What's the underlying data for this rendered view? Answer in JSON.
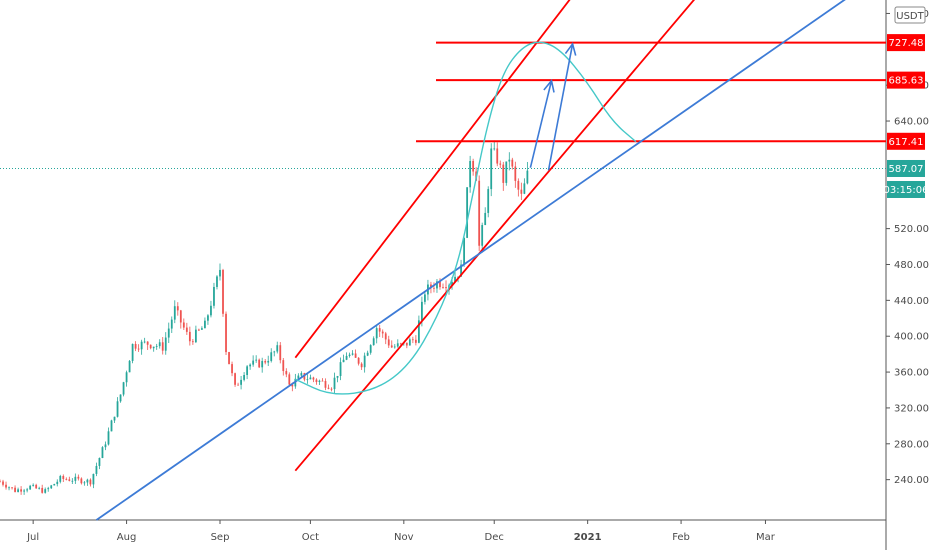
{
  "chart_data": {
    "type": "line",
    "title": "",
    "xlabel": "",
    "ylabel": "",
    "currency": "USDT",
    "x_ticks": [
      {
        "label": "Jul",
        "date": "2020-07-01"
      },
      {
        "label": "Aug",
        "date": "2020-08-01"
      },
      {
        "label": "Sep",
        "date": "2020-09-01"
      },
      {
        "label": "Oct",
        "date": "2020-10-01"
      },
      {
        "label": "Nov",
        "date": "2020-11-01"
      },
      {
        "label": "Dec",
        "date": "2020-12-01"
      },
      {
        "label": "2021",
        "date": "2021-01-01"
      },
      {
        "label": "Feb",
        "date": "2021-02-01"
      },
      {
        "label": "Mar",
        "date": "2021-03-01"
      }
    ],
    "y_ticks": [
      240,
      280,
      320,
      360,
      400,
      440,
      480,
      520,
      640,
      680,
      760
    ],
    "y_tick_labels": [
      "240.00",
      "280.00",
      "320.00",
      "360.00",
      "400.00",
      "440.00",
      "480.00",
      "520.00",
      "640.00",
      "680.00",
      "760.00"
    ],
    "ylim": [
      195,
      775
    ],
    "xlim": [
      "2020-06-20",
      "2021-04-10"
    ],
    "grid": false,
    "price_series": {
      "name": "",
      "color": "#26a69a",
      "down_color": "#ef5350",
      "points": [
        [
          "2020-06-20",
          238
        ],
        [
          "2020-06-25",
          228
        ],
        [
          "2020-06-30",
          232
        ],
        [
          "2020-07-05",
          227
        ],
        [
          "2020-07-10",
          241
        ],
        [
          "2020-07-15",
          240
        ],
        [
          "2020-07-20",
          238
        ],
        [
          "2020-07-25",
          282
        ],
        [
          "2020-07-30",
          335
        ],
        [
          "2020-08-03",
          390
        ],
        [
          "2020-08-08",
          392
        ],
        [
          "2020-08-13",
          388
        ],
        [
          "2020-08-17",
          430
        ],
        [
          "2020-08-22",
          395
        ],
        [
          "2020-08-27",
          412
        ],
        [
          "2020-09-01",
          475
        ],
        [
          "2020-09-03",
          385
        ],
        [
          "2020-09-06",
          342
        ],
        [
          "2020-09-10",
          368
        ],
        [
          "2020-09-15",
          370
        ],
        [
          "2020-09-20",
          385
        ],
        [
          "2020-09-24",
          345
        ],
        [
          "2020-09-28",
          355
        ],
        [
          "2020-10-02",
          352
        ],
        [
          "2020-10-08",
          345
        ],
        [
          "2020-10-13",
          380
        ],
        [
          "2020-10-18",
          370
        ],
        [
          "2020-10-23",
          410
        ],
        [
          "2020-10-28",
          388
        ],
        [
          "2020-11-01",
          390
        ],
        [
          "2020-11-05",
          398
        ],
        [
          "2020-11-08",
          450
        ],
        [
          "2020-11-12",
          460
        ],
        [
          "2020-11-16",
          460
        ],
        [
          "2020-11-20",
          475
        ],
        [
          "2020-11-23",
          600
        ],
        [
          "2020-11-25",
          580
        ],
        [
          "2020-11-26",
          500
        ],
        [
          "2020-11-28",
          535
        ],
        [
          "2020-11-30",
          605
        ],
        [
          "2020-12-02",
          598
        ],
        [
          "2020-12-04",
          575
        ],
        [
          "2020-12-06",
          600
        ],
        [
          "2020-12-08",
          570
        ],
        [
          "2020-12-10",
          555
        ],
        [
          "2020-12-12",
          580
        ]
      ]
    },
    "horizontal_levels": [
      {
        "value": 727.48,
        "label": "727.48",
        "color": "#ff0000"
      },
      {
        "value": 685.63,
        "label": "685.63",
        "color": "#ff0000"
      },
      {
        "value": 617.41,
        "label": "617.41",
        "color": "#ff0000"
      }
    ],
    "current_price": {
      "value": 587.07,
      "label": "587.07",
      "countdown": "03:15:06",
      "color": "#26a69a"
    },
    "trendlines": [
      {
        "name": "channel-upper",
        "color": "#ff0000",
        "points": [
          [
            "2020-09-26",
            376
          ],
          [
            "2020-12-28",
            784
          ]
        ]
      },
      {
        "name": "channel-lower",
        "color": "#ff0000",
        "points": [
          [
            "2020-09-26",
            250
          ],
          [
            "2021-02-07",
            782
          ]
        ]
      },
      {
        "name": "support-line",
        "color": "#3d7bd6",
        "points": [
          [
            "2020-07-22",
            195
          ],
          [
            "2021-03-31",
            784
          ]
        ]
      }
    ],
    "arc": {
      "color": "#45c8c8",
      "points": [
        [
          "2020-09-26",
          352
        ],
        [
          "2020-10-08",
          333
        ],
        [
          "2020-10-23",
          340
        ],
        [
          "2020-11-03",
          368
        ],
        [
          "2020-11-12",
          420
        ],
        [
          "2020-11-19",
          480
        ],
        [
          "2020-11-24",
          560
        ],
        [
          "2020-11-29",
          640
        ],
        [
          "2020-12-04",
          695
        ],
        [
          "2020-12-10",
          722
        ],
        [
          "2020-12-16",
          730
        ],
        [
          "2020-12-23",
          720
        ],
        [
          "2021-01-01",
          683
        ],
        [
          "2021-01-09",
          640
        ],
        [
          "2021-01-17",
          617
        ]
      ]
    },
    "arrows": [
      {
        "color": "#3d7bd6",
        "from": [
          "2020-12-13",
          588
        ],
        "to": [
          "2020-12-20",
          685
        ]
      },
      {
        "color": "#3d7bd6",
        "from": [
          "2020-12-19",
          585
        ],
        "to": [
          "2020-12-27",
          726
        ]
      }
    ]
  }
}
